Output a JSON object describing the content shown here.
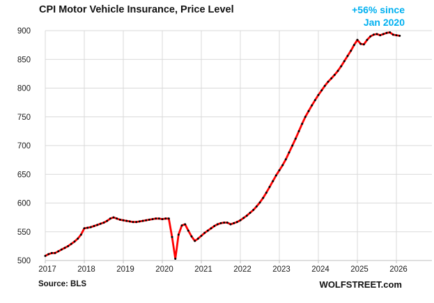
{
  "header": {
    "title": "CPI Motor Vehicle Insurance, Price Level",
    "annotation_line1": "+56% since",
    "annotation_line2": "Jan 2020",
    "annotation_color": "#00B0F0"
  },
  "footer": {
    "source": "Source: BLS",
    "watermark": "WOLFSTREET.com"
  },
  "chart_data": {
    "type": "line",
    "title": "CPI Motor Vehicle Insurance, Price Level",
    "xlabel": "",
    "ylabel": "",
    "ylim": [
      500,
      900
    ],
    "y_ticks": [
      500,
      550,
      600,
      650,
      700,
      750,
      800,
      850,
      900
    ],
    "x_ticks": [
      2017,
      2018,
      2019,
      2020,
      2021,
      2022,
      2023,
      2024,
      2025,
      2026
    ],
    "grid": true,
    "legend": "none",
    "annotation": "+56% since Jan 2020",
    "line_color": "#FE0000",
    "marker_color": "#000000",
    "grid_color": "#D9D9D9",
    "axis_color": "#BFBFBF",
    "series": [
      {
        "name": "CPI Motor Vehicle Insurance index",
        "start_year": 2017,
        "start_month": 1,
        "frequency": "monthly",
        "values": [
          508,
          511,
          513,
          513,
          516,
          519,
          522,
          525,
          529,
          533,
          538,
          545,
          556,
          557,
          558,
          560,
          562,
          564,
          566,
          569,
          573,
          575,
          573,
          571,
          570,
          569,
          568,
          567,
          567,
          568,
          569,
          570,
          571,
          572,
          573,
          573,
          572,
          573,
          573,
          541,
          503,
          545,
          561,
          563,
          552,
          542,
          534,
          538,
          543,
          548,
          552,
          556,
          560,
          563,
          565,
          566,
          566,
          563,
          565,
          567,
          570,
          574,
          578,
          583,
          588,
          594,
          601,
          609,
          618,
          628,
          638,
          648,
          657,
          666,
          676,
          688,
          700,
          712,
          725,
          738,
          750,
          760,
          770,
          779,
          788,
          796,
          804,
          811,
          817,
          823,
          830,
          838,
          847,
          856,
          865,
          875,
          884,
          877,
          876,
          884,
          890,
          893,
          894,
          892,
          894,
          896,
          897,
          893,
          892,
          891
        ]
      }
    ]
  }
}
